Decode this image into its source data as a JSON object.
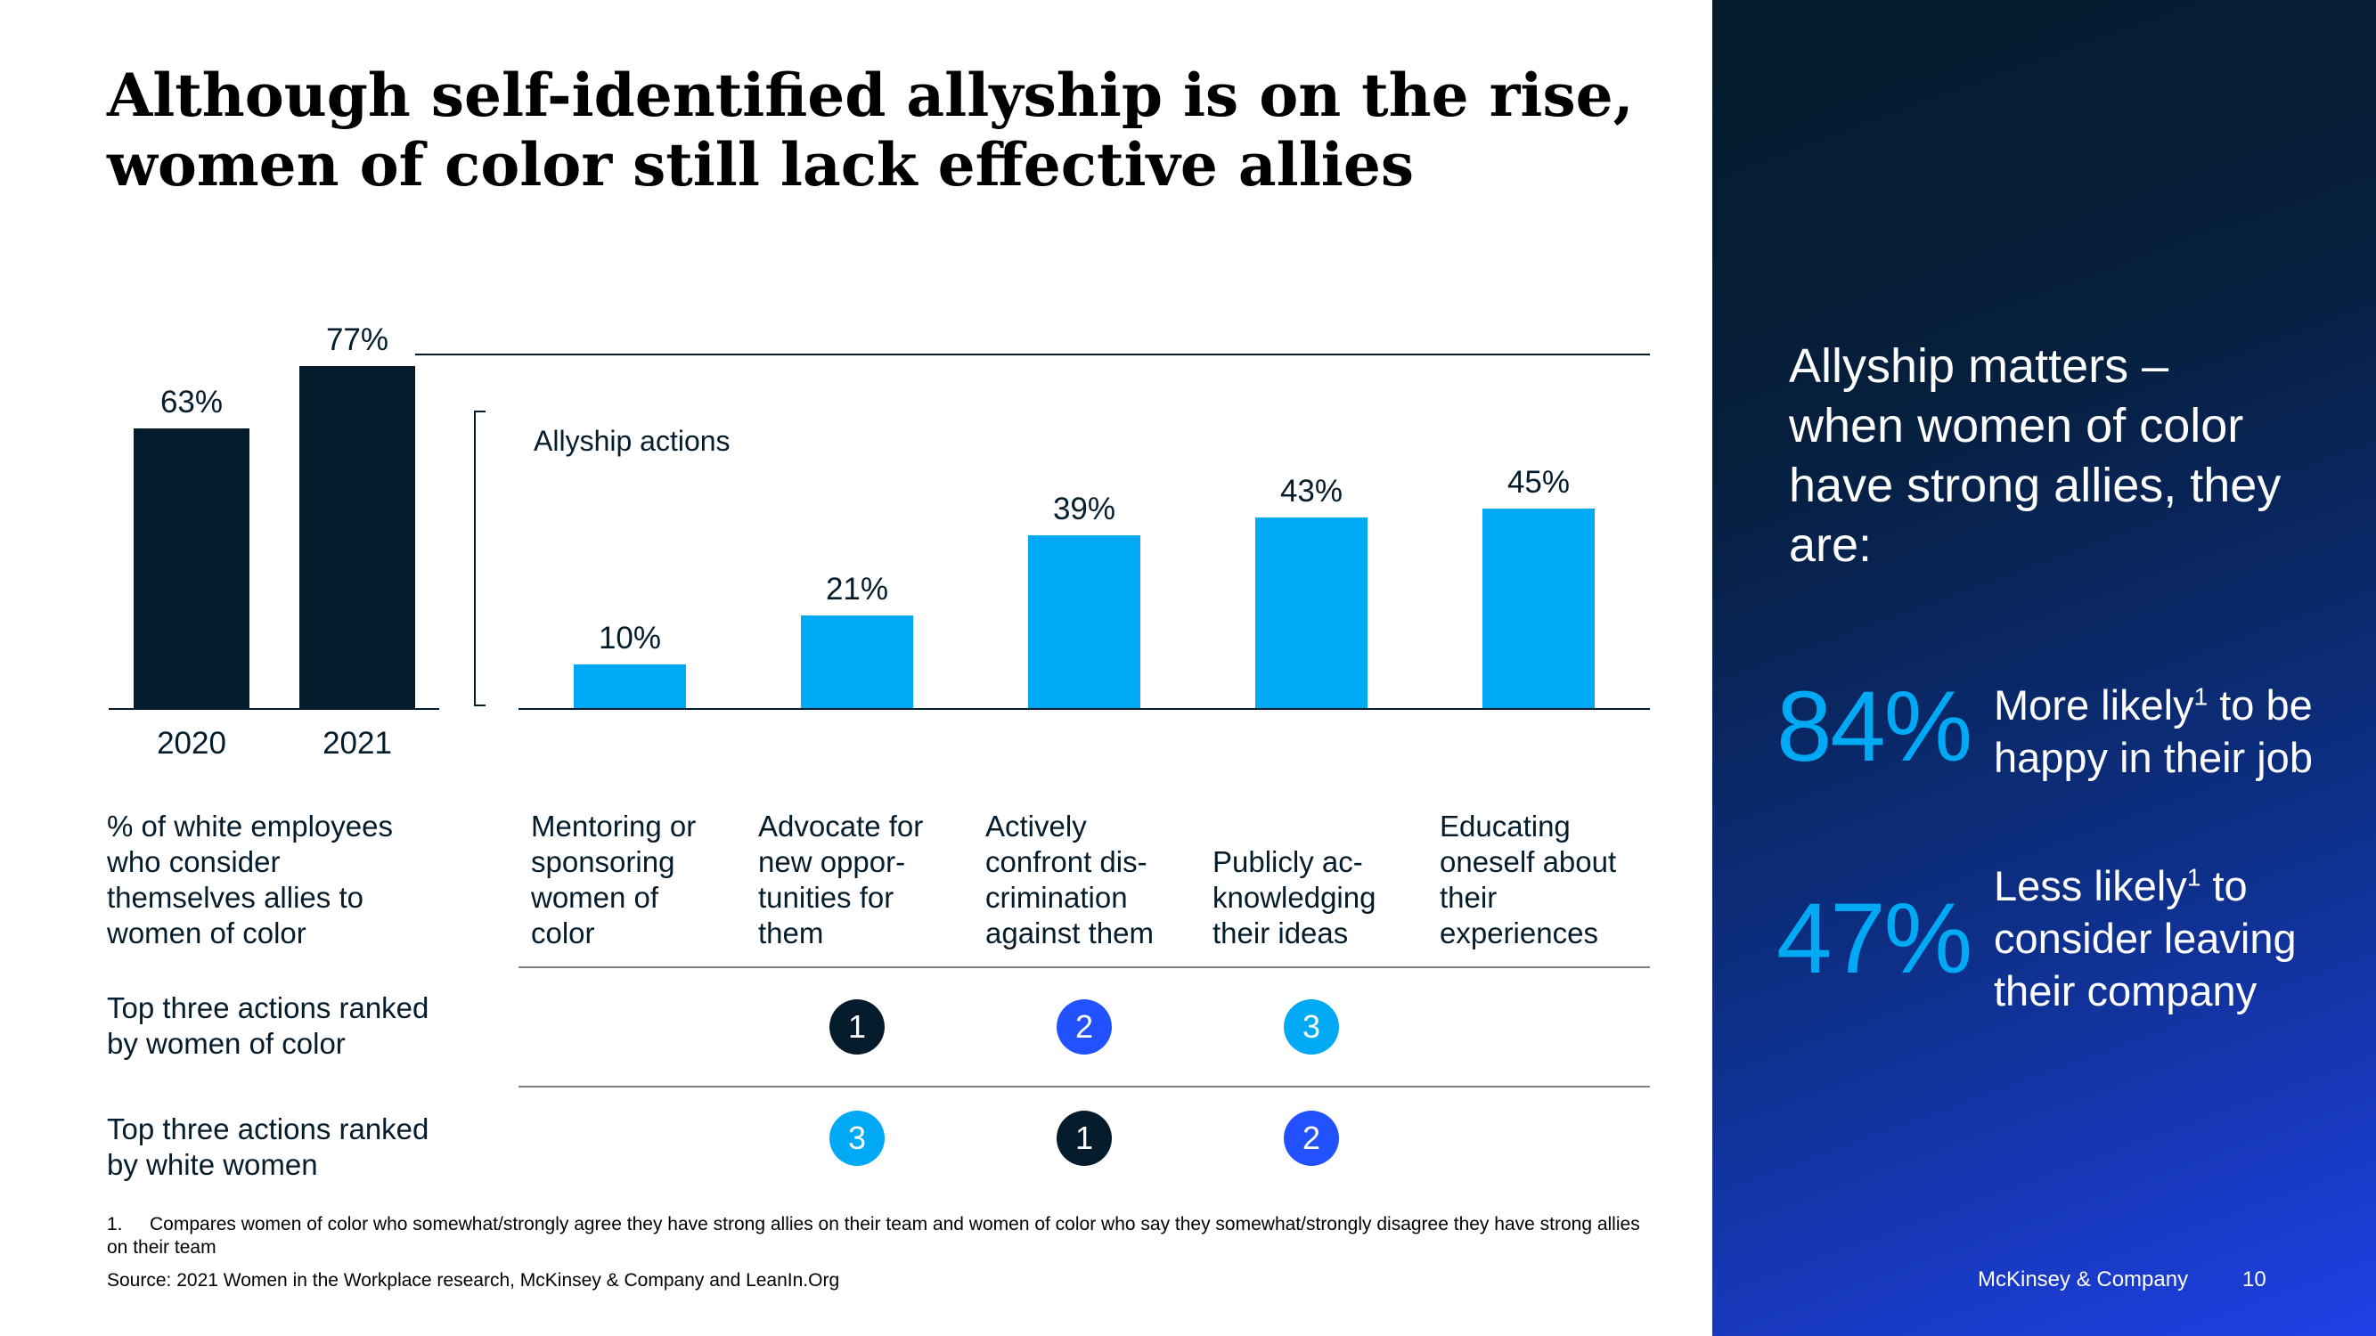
{
  "title_line1": "Although self-identified allyship is on the rise,",
  "title_line2": "women of color still lack effective allies",
  "allyship_actions_label": "Allyship actions",
  "chart_data": [
    {
      "type": "bar",
      "categories": [
        "2020",
        "2021"
      ],
      "values": [
        63,
        77
      ],
      "value_labels": [
        "63%",
        "77%"
      ],
      "ylim": [
        0,
        100
      ],
      "bar_color": "#051c2c"
    },
    {
      "type": "bar",
      "categories": [
        "Mentoring or\nsponsoring\nwomen of\ncolor",
        "Advocate for\nnew oppor-\ntunities for\nthem",
        "Actively\nconfront dis-\ncrimination\nagainst them",
        "Publicly ac-\nknowledging\ntheir ideas",
        "Educating\noneself about\ntheir\nexperiences"
      ],
      "values": [
        10,
        21,
        39,
        43,
        45
      ],
      "value_labels": [
        "10%",
        "21%",
        "39%",
        "43%",
        "45%"
      ],
      "ylim": [
        0,
        100
      ],
      "bar_color": "#00a9f4"
    }
  ],
  "left_caption": "% of white employees\nwho consider\nthemselves allies to\nwomen of color",
  "rankings": {
    "women_of_color": {
      "label": "Top three actions ranked\nby women of color",
      "ranks": [
        "",
        "1",
        "2",
        "3",
        ""
      ]
    },
    "white_women": {
      "label": "Top three actions ranked\nby white women",
      "ranks": [
        "",
        "3",
        "1",
        "2",
        ""
      ]
    },
    "rank_colors": {
      "1": "#051c2c",
      "2": "#2251ff",
      "3": "#00a9f4"
    }
  },
  "footnote_number": "1.",
  "footnote_text": "Compares women of color who somewhat/strongly agree they have strong allies on their team and women of color who say they somewhat/strongly disagree they have strong allies on their team",
  "source": "Source: 2021 Women in the Workplace research, McKinsey & Company and LeanIn.Org",
  "side_panel": {
    "heading": "Allyship matters –\nwhen women of color\nhave strong allies, they\nare:",
    "stat1_value": "84%",
    "stat1_text_a": "More likely",
    "stat1_sup": "1",
    "stat1_text_b": " to be\nhappy in their job",
    "stat2_value": "47%",
    "stat2_text_a": "Less likely",
    "stat2_sup": "1",
    "stat2_text_b": "  to\nconsider leaving\ntheir company",
    "company": "McKinsey & Company",
    "page_number": "10"
  }
}
